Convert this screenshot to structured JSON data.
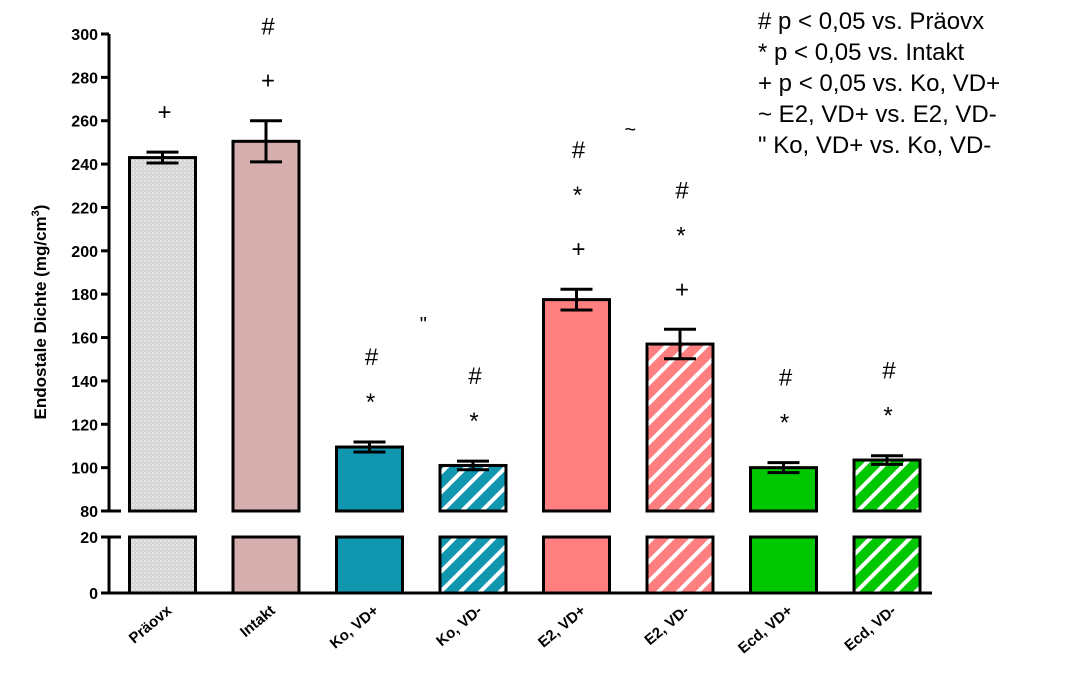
{
  "chart_data": {
    "type": "bar",
    "ylabel": "Endostale Dichte (mg/cm",
    "ylabel_superscript": "3",
    "ylabel_close": ")",
    "axis_break": {
      "lower_range": [
        0,
        20
      ],
      "upper_range": [
        80,
        300
      ]
    },
    "yticks_lower": [
      0,
      20
    ],
    "yticks_upper": [
      80,
      100,
      120,
      140,
      160,
      180,
      200,
      220,
      240,
      260,
      280,
      300
    ],
    "categories": [
      "Präovx",
      "Intakt",
      "Ko, VD+",
      "Ko, VD-",
      "E2, VD+",
      "E2, VD-",
      "Ecd, VD+",
      "Ecd, VD-"
    ],
    "values": [
      243,
      250.5,
      109.5,
      101,
      177.5,
      157,
      100,
      103.5
    ],
    "errors": [
      2.5,
      9.5,
      2.3,
      2,
      4.8,
      6.8,
      2.3,
      2
    ],
    "colors": [
      "#d4d4d4",
      "#d6aeae",
      "#1196b0",
      "#1196b0",
      "#fd7f7f",
      "#fd7f7f",
      "#00c800",
      "#00c800"
    ],
    "patterns": [
      "dots",
      "solid",
      "solid",
      "hatch",
      "solid",
      "hatch",
      "solid",
      "hatch"
    ],
    "significance": [
      [
        "+"
      ],
      [
        "+",
        "#"
      ],
      [
        "*",
        "#"
      ],
      [
        "*",
        "#"
      ],
      [
        "+",
        "*",
        "#"
      ],
      [
        "+",
        "*",
        "#"
      ],
      [
        "*",
        "#"
      ],
      [
        "*",
        "#"
      ]
    ],
    "pair_marks": [
      {
        "symbol": "\"",
        "between": [
          2,
          3
        ],
        "at": 163
      },
      {
        "symbol": "~",
        "between": [
          4,
          5
        ],
        "at": 253
      }
    ],
    "legend": [
      "# p < 0,05 vs. Präovx",
      "*  p < 0,05 vs. Intakt",
      "+ p < 0,05 vs. Ko, VD+",
      "~ E2, VD+ vs. E2, VD-",
      "\"  Ko, VD+ vs. Ko, VD-"
    ],
    "legend_position": "top-right",
    "grid": false
  }
}
